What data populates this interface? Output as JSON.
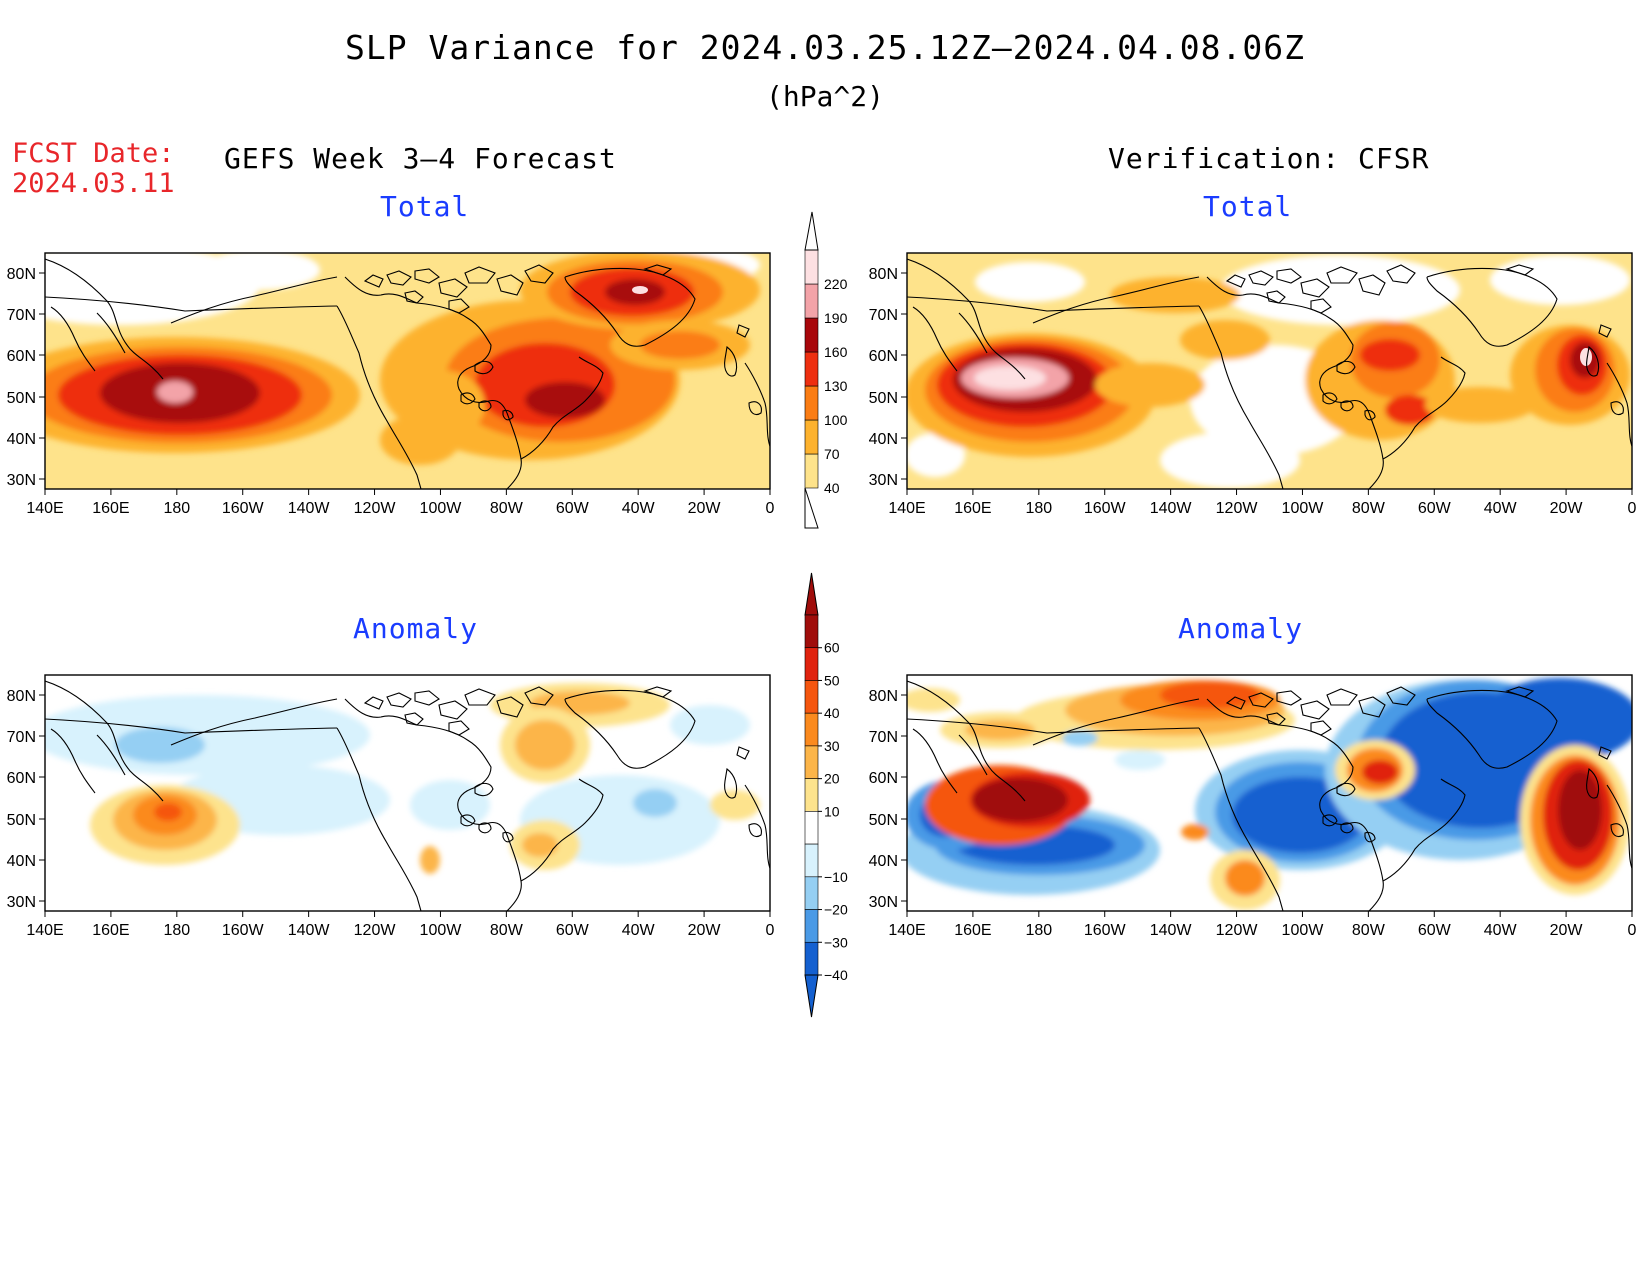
{
  "title": "SLP Variance for 2024.03.25.12Z–2024.04.08.06Z",
  "units": "(hPa^2)",
  "forecast_date_label": "FCST Date:",
  "forecast_date": "2024.03.11",
  "columns": {
    "left": "GEFS Week 3–4 Forecast",
    "right": "Verification: CFSR"
  },
  "panel_titles": {
    "total": "Total",
    "anomaly": "Anomaly"
  },
  "lat_labels": [
    "80N",
    "70N",
    "60N",
    "50N",
    "40N",
    "30N"
  ],
  "lon_labels": [
    "140E",
    "160E",
    "180",
    "160W",
    "140W",
    "120W",
    "100W",
    "80W",
    "60W",
    "40W",
    "20W",
    "0"
  ],
  "total_colorbar": {
    "levels": [
      "40",
      "70",
      "100",
      "130",
      "160",
      "190",
      "220"
    ],
    "colors": [
      "#fee38b",
      "#fdb22e",
      "#fb7d14",
      "#ee2f10",
      "#a8070b",
      "#f3a3a8",
      "#fde0e2"
    ]
  },
  "anomaly_colorbar": {
    "levels": [
      "60",
      "50",
      "40",
      "30",
      "20",
      "10",
      "−10",
      "−20",
      "−30",
      "−40"
    ],
    "colors_top_to_bottom": [
      "#a00d0b",
      "#e0230f",
      "#f5560f",
      "#fb8a1e",
      "#fcb549",
      "#fde38d",
      "#ffffff",
      "#d8f2fd",
      "#95cff3",
      "#4a9ae6",
      "#1460d0"
    ]
  },
  "colors": {
    "title_text": "#000000",
    "forecast_date_text": "#e8262a",
    "panel_title_text": "#1a3cff",
    "land_outline": "#000000"
  }
}
